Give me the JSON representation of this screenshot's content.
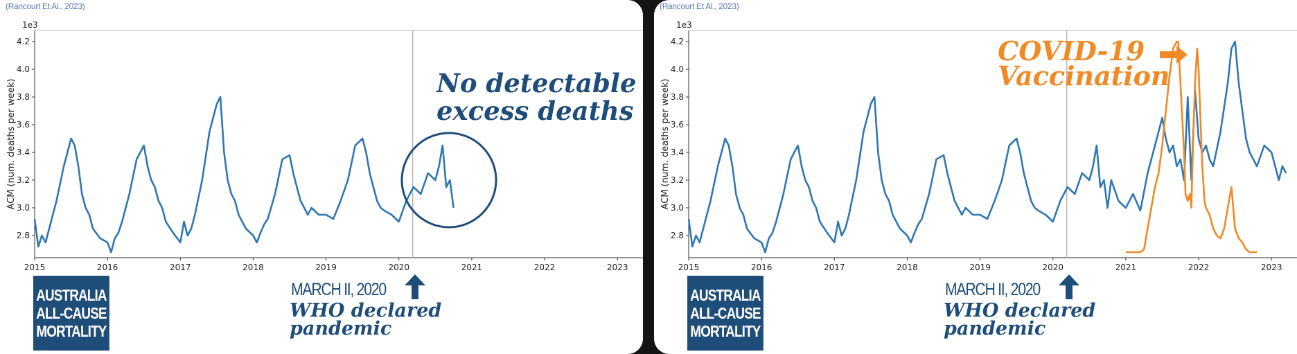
{
  "source": "(Rancourt Et Al., 2023)",
  "badge_lines": [
    "AUSTRALIA",
    "ALL-CAUSE",
    "MORTALITY"
  ],
  "march_label": "MARCH II, 2020",
  "who_lines": [
    "WHO declared",
    "pandemic"
  ],
  "no_excess_lines": [
    "No detectable",
    "excess deaths"
  ],
  "covid_lines": [
    "COVID-19",
    "Vaccination"
  ],
  "colors": {
    "acm": "#2f77b4",
    "vax": "#f08a24",
    "annotation": "#1f4d7a"
  },
  "chart_data": [
    {
      "type": "line",
      "title": "",
      "xlabel": "",
      "ylabel": "ACM (num. deaths per week)",
      "y_multiplier_label": "1e3",
      "xlim": [
        2015,
        2023.35
      ],
      "ylim": [
        2.64,
        4.28
      ],
      "x_ticks": [
        2015,
        2016,
        2017,
        2018,
        2019,
        2020,
        2021,
        2022,
        2023
      ],
      "y_ticks": [
        2.8,
        3.0,
        3.2,
        3.4,
        3.6,
        3.8,
        4.0,
        4.2
      ],
      "vline_x": 2020.19,
      "series": [
        {
          "name": "",
          "color": "#2f77b4",
          "x": [
            2015.0,
            2015.05,
            2015.1,
            2015.15,
            2015.2,
            2015.3,
            2015.4,
            2015.5,
            2015.55,
            2015.6,
            2015.65,
            2015.7,
            2015.75,
            2015.8,
            2015.9,
            2016.0,
            2016.05,
            2016.1,
            2016.15,
            2016.2,
            2016.3,
            2016.4,
            2016.5,
            2016.55,
            2016.6,
            2016.65,
            2016.7,
            2016.75,
            2016.8,
            2016.9,
            2017.0,
            2017.05,
            2017.1,
            2017.15,
            2017.2,
            2017.3,
            2017.4,
            2017.5,
            2017.55,
            2017.6,
            2017.65,
            2017.7,
            2017.75,
            2017.8,
            2017.9,
            2018.0,
            2018.05,
            2018.1,
            2018.15,
            2018.2,
            2018.3,
            2018.4,
            2018.5,
            2018.55,
            2018.6,
            2018.65,
            2018.7,
            2018.75,
            2018.8,
            2018.9,
            2019.0,
            2019.1,
            2019.2,
            2019.3,
            2019.4,
            2019.5,
            2019.55,
            2019.6,
            2019.65,
            2019.7,
            2019.75,
            2019.8,
            2019.9,
            2020.0,
            2020.1,
            2020.2,
            2020.3,
            2020.4,
            2020.5,
            2020.55,
            2020.6,
            2020.65,
            2020.7,
            2020.75
          ],
          "values": [
            2.92,
            2.72,
            2.8,
            2.75,
            2.85,
            3.05,
            3.3,
            3.5,
            3.45,
            3.3,
            3.1,
            3.0,
            2.95,
            2.85,
            2.78,
            2.75,
            2.68,
            2.78,
            2.82,
            2.9,
            3.1,
            3.35,
            3.45,
            3.3,
            3.2,
            3.15,
            3.05,
            3.0,
            2.9,
            2.82,
            2.75,
            2.9,
            2.8,
            2.85,
            2.95,
            3.2,
            3.55,
            3.75,
            3.8,
            3.4,
            3.2,
            3.1,
            3.05,
            2.95,
            2.85,
            2.8,
            2.75,
            2.82,
            2.88,
            2.92,
            3.1,
            3.35,
            3.38,
            3.25,
            3.15,
            3.05,
            3.0,
            2.95,
            3.0,
            2.95,
            2.95,
            2.92,
            3.05,
            3.2,
            3.45,
            3.5,
            3.4,
            3.25,
            3.15,
            3.05,
            3.0,
            2.98,
            2.95,
            2.9,
            3.05,
            3.15,
            3.1,
            3.25,
            3.2,
            3.3,
            3.45,
            3.15,
            3.2,
            3.0
          ]
        }
      ]
    },
    {
      "type": "line",
      "title": "",
      "xlabel": "",
      "ylabel": "ACM (num. deaths per week)",
      "y_multiplier_label": "1e3",
      "xlim": [
        2015,
        2023.35
      ],
      "ylim": [
        2.64,
        4.28
      ],
      "x_ticks": [
        2015,
        2016,
        2017,
        2018,
        2019,
        2020,
        2021,
        2022,
        2023
      ],
      "y_ticks": [
        2.8,
        3.0,
        3.2,
        3.4,
        3.6,
        3.8,
        4.0,
        4.2
      ],
      "vline_x": 2020.19,
      "series": [
        {
          "name": "",
          "color": "#2f77b4",
          "x": [
            2015.0,
            2015.05,
            2015.1,
            2015.15,
            2015.2,
            2015.3,
            2015.4,
            2015.5,
            2015.55,
            2015.6,
            2015.65,
            2015.7,
            2015.75,
            2015.8,
            2015.9,
            2016.0,
            2016.05,
            2016.1,
            2016.15,
            2016.2,
            2016.3,
            2016.4,
            2016.5,
            2016.55,
            2016.6,
            2016.65,
            2016.7,
            2016.75,
            2016.8,
            2016.9,
            2017.0,
            2017.05,
            2017.1,
            2017.15,
            2017.2,
            2017.3,
            2017.4,
            2017.5,
            2017.55,
            2017.6,
            2017.65,
            2017.7,
            2017.75,
            2017.8,
            2017.9,
            2018.0,
            2018.05,
            2018.1,
            2018.15,
            2018.2,
            2018.3,
            2018.4,
            2018.5,
            2018.55,
            2018.6,
            2018.65,
            2018.7,
            2018.75,
            2018.8,
            2018.9,
            2019.0,
            2019.1,
            2019.2,
            2019.3,
            2019.4,
            2019.5,
            2019.55,
            2019.6,
            2019.65,
            2019.7,
            2019.75,
            2019.8,
            2019.9,
            2020.0,
            2020.1,
            2020.2,
            2020.3,
            2020.4,
            2020.5,
            2020.55,
            2020.6,
            2020.65,
            2020.7,
            2020.75,
            2020.8,
            2020.9,
            2021.0,
            2021.1,
            2021.2,
            2021.3,
            2021.4,
            2021.5,
            2021.55,
            2021.6,
            2021.65,
            2021.7,
            2021.75,
            2021.8,
            2021.85,
            2021.9,
            2021.95,
            2022.0,
            2022.05,
            2022.1,
            2022.15,
            2022.2,
            2022.3,
            2022.4,
            2022.45,
            2022.5,
            2022.55,
            2022.6,
            2022.65,
            2022.7,
            2022.8,
            2022.9,
            2023.0,
            2023.05,
            2023.1,
            2023.15,
            2023.2
          ],
          "values": [
            2.92,
            2.72,
            2.8,
            2.75,
            2.85,
            3.05,
            3.3,
            3.5,
            3.45,
            3.3,
            3.1,
            3.0,
            2.95,
            2.85,
            2.78,
            2.75,
            2.68,
            2.78,
            2.82,
            2.9,
            3.1,
            3.35,
            3.45,
            3.3,
            3.2,
            3.15,
            3.05,
            3.0,
            2.9,
            2.82,
            2.75,
            2.9,
            2.8,
            2.85,
            2.95,
            3.2,
            3.55,
            3.75,
            3.8,
            3.4,
            3.2,
            3.1,
            3.05,
            2.95,
            2.85,
            2.8,
            2.75,
            2.82,
            2.88,
            2.92,
            3.1,
            3.35,
            3.38,
            3.25,
            3.15,
            3.05,
            3.0,
            2.95,
            3.0,
            2.95,
            2.95,
            2.92,
            3.05,
            3.2,
            3.45,
            3.5,
            3.4,
            3.25,
            3.15,
            3.05,
            3.0,
            2.98,
            2.95,
            2.9,
            3.05,
            3.15,
            3.1,
            3.25,
            3.2,
            3.3,
            3.45,
            3.15,
            3.2,
            3.0,
            3.2,
            3.05,
            3.0,
            3.1,
            2.98,
            3.25,
            3.45,
            3.65,
            3.5,
            3.4,
            3.45,
            3.3,
            3.35,
            3.2,
            3.8,
            3.2,
            3.85,
            3.5,
            3.4,
            3.45,
            3.35,
            3.3,
            3.55,
            3.9,
            4.15,
            4.2,
            3.9,
            3.7,
            3.5,
            3.4,
            3.3,
            3.45,
            3.4,
            3.3,
            3.2,
            3.3,
            3.25
          ]
        },
        {
          "name": "",
          "color": "#f08a24",
          "x": [
            2021.0,
            2021.2,
            2021.25,
            2021.3,
            2021.35,
            2021.4,
            2021.45,
            2021.5,
            2021.55,
            2021.6,
            2021.65,
            2021.7,
            2021.72,
            2021.75,
            2021.8,
            2021.82,
            2021.85,
            2021.88,
            2021.9,
            2021.92,
            2021.95,
            2021.98,
            2022.0,
            2022.02,
            2022.05,
            2022.08,
            2022.1,
            2022.15,
            2022.2,
            2022.25,
            2022.3,
            2022.35,
            2022.4,
            2022.45,
            2022.5,
            2022.55,
            2022.6,
            2022.65,
            2022.7,
            2022.8
          ],
          "values": [
            2.68,
            2.68,
            2.7,
            2.85,
            3.0,
            3.15,
            3.25,
            3.45,
            3.7,
            3.95,
            4.15,
            4.2,
            4.2,
            3.9,
            3.4,
            3.1,
            3.05,
            3.1,
            3.0,
            3.4,
            3.9,
            4.15,
            4.0,
            3.7,
            3.3,
            3.05,
            3.0,
            2.95,
            2.85,
            2.8,
            2.78,
            2.85,
            3.0,
            3.15,
            2.85,
            2.78,
            2.75,
            2.7,
            2.68,
            2.68
          ]
        }
      ]
    }
  ]
}
